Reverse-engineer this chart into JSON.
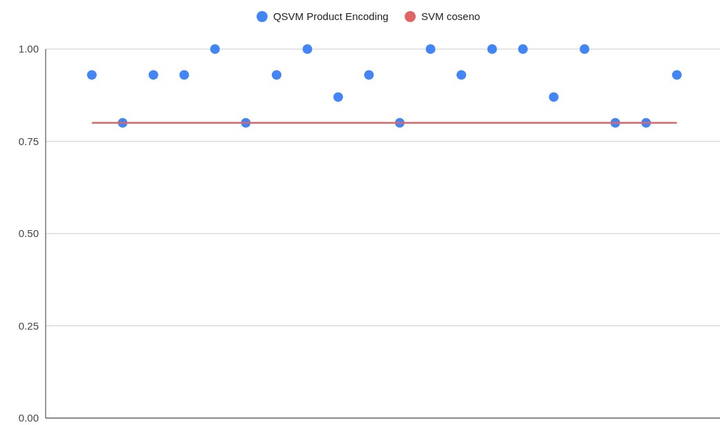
{
  "chart_data": {
    "type": "scatter",
    "categories": [
      null,
      null,
      null,
      null,
      null,
      null,
      null,
      null,
      null,
      null,
      null,
      null,
      null,
      null,
      null,
      null,
      null,
      null,
      null,
      null
    ],
    "series": [
      {
        "name": "QSVM Product Encoding",
        "color": "#4285f4",
        "values": [
          0.93,
          0.8,
          0.93,
          0.93,
          1.0,
          0.8,
          0.93,
          1.0,
          0.87,
          0.93,
          0.8,
          1.0,
          0.93,
          1.0,
          1.0,
          0.87,
          1.0,
          0.8,
          0.8,
          0.93
        ]
      },
      {
        "name": "SVM coseno",
        "type": "line",
        "marker": "none",
        "color": "#e06666",
        "values": [
          0.8,
          0.8,
          0.8,
          0.8,
          0.8,
          0.8,
          0.8,
          0.8,
          0.8,
          0.8,
          0.8,
          0.8,
          0.8,
          0.8,
          0.8,
          0.8,
          0.8,
          0.8,
          0.8,
          0.8
        ]
      }
    ],
    "ylim": [
      0,
      1
    ],
    "yticks": [
      {
        "value": 0,
        "label": "0.00"
      },
      {
        "value": 0.25,
        "label": "0.25"
      },
      {
        "value": 0.5,
        "label": "0.50"
      },
      {
        "value": 0.75,
        "label": "0.75"
      },
      {
        "value": 1,
        "label": "1.00"
      }
    ],
    "grid": "y",
    "legend": "top",
    "marker": "circle"
  }
}
